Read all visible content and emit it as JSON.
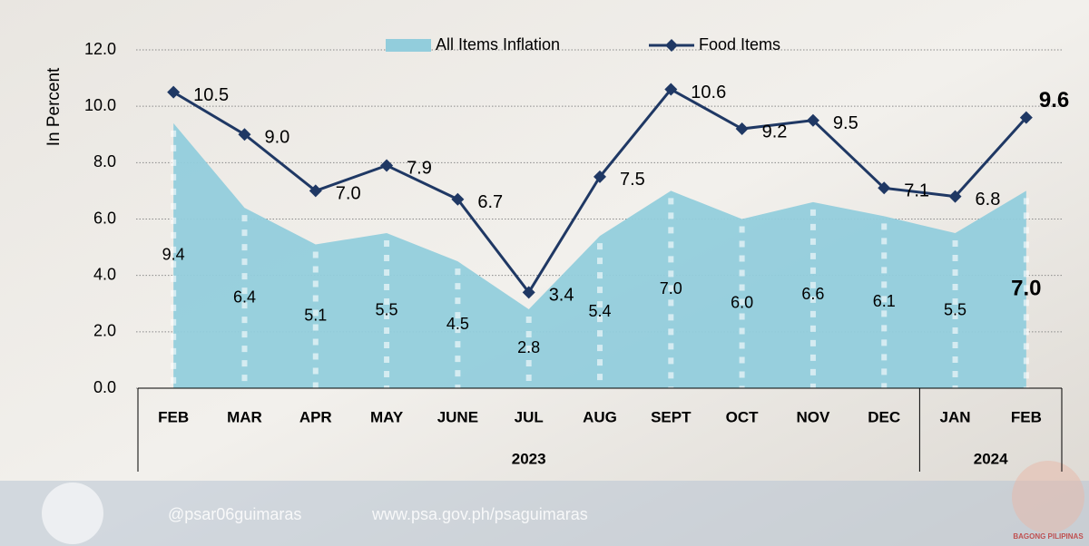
{
  "chart_data": {
    "type": "area_line",
    "y_axis_label": "In Percent",
    "categories": [
      "FEB",
      "MAR",
      "APR",
      "MAY",
      "JUNE",
      "JUL",
      "AUG",
      "SEPT",
      "OCT",
      "NOV",
      "DEC",
      "JAN",
      "FEB"
    ],
    "groups": [
      {
        "label": "2023",
        "count": 11
      },
      {
        "label": "2024",
        "count": 2
      }
    ],
    "series": [
      {
        "name": "All Items Inflation",
        "kind": "area",
        "color": "#92cddc",
        "values": [
          9.4,
          6.4,
          5.1,
          5.5,
          4.5,
          2.8,
          5.4,
          7.0,
          6.0,
          6.6,
          6.1,
          5.5,
          7.0
        ],
        "value_labels": [
          "9.4",
          "6.4",
          "5.1",
          "5.5",
          "4.5",
          "2.8",
          "5.4",
          "7.0",
          "6.0",
          "6.6",
          "6.1",
          "5.5",
          "7.0"
        ]
      },
      {
        "name": "Food Items",
        "kind": "line",
        "color": "#1f3864",
        "values": [
          10.5,
          9.0,
          7.0,
          7.9,
          6.7,
          3.4,
          7.5,
          10.6,
          9.2,
          9.5,
          7.1,
          6.8,
          9.6
        ],
        "value_labels": [
          "10.5",
          "9.0",
          "7.0",
          "7.9",
          "6.7",
          "3.4",
          "7.5",
          "10.6",
          "9.2",
          "9.5",
          "7.1",
          "6.8",
          "9.6"
        ]
      }
    ],
    "ylim": [
      0,
      12
    ],
    "yticks": [
      {
        "value": 0,
        "label": "0.0"
      },
      {
        "value": 2,
        "label": "2.0"
      },
      {
        "value": 4,
        "label": "4.0"
      },
      {
        "value": 6,
        "label": "6.0"
      },
      {
        "value": 8,
        "label": "8.0"
      },
      {
        "value": 10,
        "label": "10.0"
      },
      {
        "value": 12,
        "label": "12.0"
      }
    ],
    "grid": true
  },
  "footer": {
    "social": "@psar06guimaras",
    "website": "www.psa.gov.ph/psaguimaras",
    "logo_text": "BAGONG PILIPINAS"
  }
}
